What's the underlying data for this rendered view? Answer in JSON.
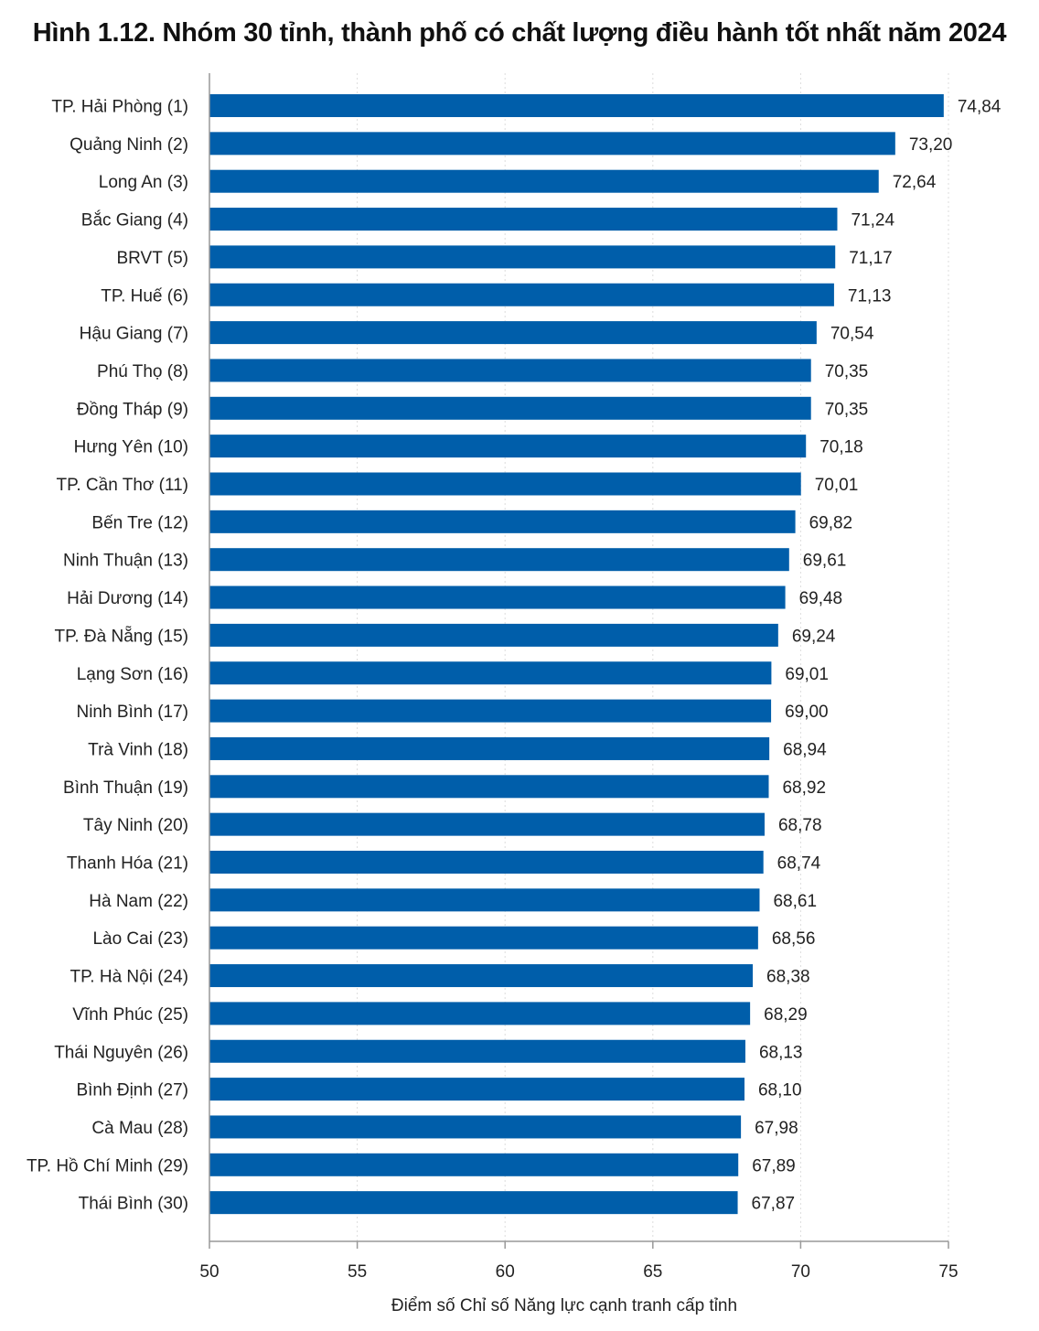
{
  "chart_data": {
    "type": "bar",
    "orientation": "horizontal",
    "title": "Hình 1.12. Nhóm 30 tỉnh, thành phố có chất lượng điều hành tốt nhất năm 2024",
    "xlabel": "Điểm số Chỉ số Năng lực cạnh tranh cấp tỉnh",
    "xlim": [
      50,
      75
    ],
    "xticks": [
      50,
      55,
      60,
      65,
      70,
      75
    ],
    "grid": true,
    "bar_color": "#005eaa",
    "categories": [
      "TP. Hải Phòng (1)",
      "Quảng Ninh (2)",
      "Long An (3)",
      "Bắc Giang (4)",
      "BRVT (5)",
      "TP. Huế (6)",
      "Hậu Giang (7)",
      "Phú Thọ (8)",
      "Đồng Tháp (9)",
      "Hưng Yên (10)",
      "TP. Cần Thơ (11)",
      "Bến Tre (12)",
      "Ninh Thuận (13)",
      "Hải Dương (14)",
      "TP. Đà Nẵng (15)",
      "Lạng Sơn (16)",
      "Ninh Bình (17)",
      "Trà Vinh (18)",
      "Bình Thuận (19)",
      "Tây Ninh (20)",
      "Thanh Hóa (21)",
      "Hà Nam (22)",
      "Lào Cai (23)",
      "TP. Hà Nội (24)",
      "Vĩnh Phúc (25)",
      "Thái Nguyên (26)",
      "Bình Định (27)",
      "Cà Mau (28)",
      "TP. Hồ Chí Minh (29)",
      "Thái Bình (30)"
    ],
    "values": [
      74.84,
      73.2,
      72.64,
      71.24,
      71.17,
      71.13,
      70.54,
      70.35,
      70.35,
      70.18,
      70.01,
      69.82,
      69.61,
      69.48,
      69.24,
      69.01,
      69.0,
      68.94,
      68.92,
      68.78,
      68.74,
      68.61,
      68.56,
      68.38,
      68.29,
      68.13,
      68.1,
      67.98,
      67.89,
      67.87
    ],
    "value_labels": [
      "74,84",
      "73,20",
      "72,64",
      "71,24",
      "71,17",
      "71,13",
      "70,54",
      "70,35",
      "70,35",
      "70,18",
      "70,01",
      "69,82",
      "69,61",
      "69,48",
      "69,24",
      "69,01",
      "69,00",
      "68,94",
      "68,92",
      "68,78",
      "68,74",
      "68,61",
      "68,56",
      "68,38",
      "68,29",
      "68,13",
      "68,10",
      "67,98",
      "67,89",
      "67,87"
    ]
  }
}
